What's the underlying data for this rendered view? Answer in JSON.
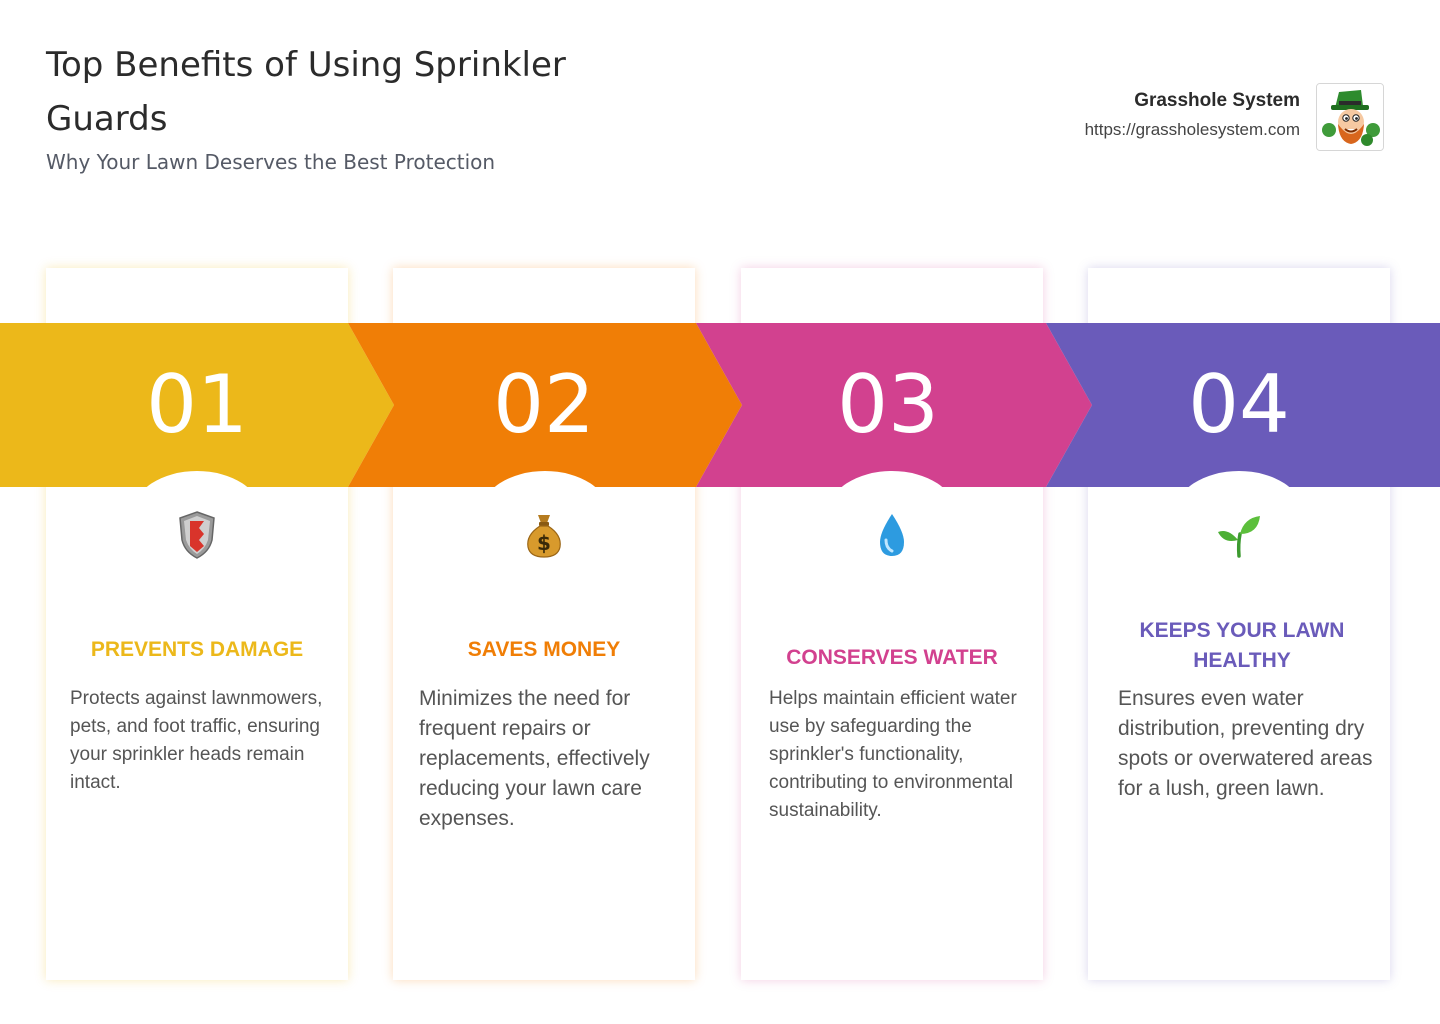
{
  "header": {
    "title": "Top Benefits of Using Sprinkler Guards",
    "subtitle": "Why Your Lawn Deserves the Best Protection"
  },
  "brand": {
    "name": "Grasshole System",
    "url": "https://grassholesystem.com",
    "logo_icon": "leprechaun-mascot-icon"
  },
  "colors": {
    "yellow": "#ECB81A",
    "orange": "#F07E06",
    "pink": "#D2418F",
    "purple": "#6A5BBA"
  },
  "benefits": [
    {
      "number": "01",
      "icon": "shield-icon",
      "heading": "PREVENTS DAMAGE",
      "description": "Protects against lawnmowers, pets, and foot traffic, ensuring your sprinkler heads remain intact."
    },
    {
      "number": "02",
      "icon": "money-bag-icon",
      "heading": "SAVES MONEY",
      "description": "Minimizes the need for frequent repairs or replacements, effectively reducing your lawn care expenses."
    },
    {
      "number": "03",
      "icon": "water-drop-icon",
      "heading": "CONSERVES WATER",
      "description": "Helps maintain efficient water use by safeguarding the sprinkler's functionality, contributing to environmental sustainability."
    },
    {
      "number": "04",
      "icon": "seedling-icon",
      "heading": "KEEPS YOUR LAWN HEALTHY",
      "description": "Ensures even water distribution, preventing dry spots or overwatered areas for a lush, green lawn."
    }
  ]
}
